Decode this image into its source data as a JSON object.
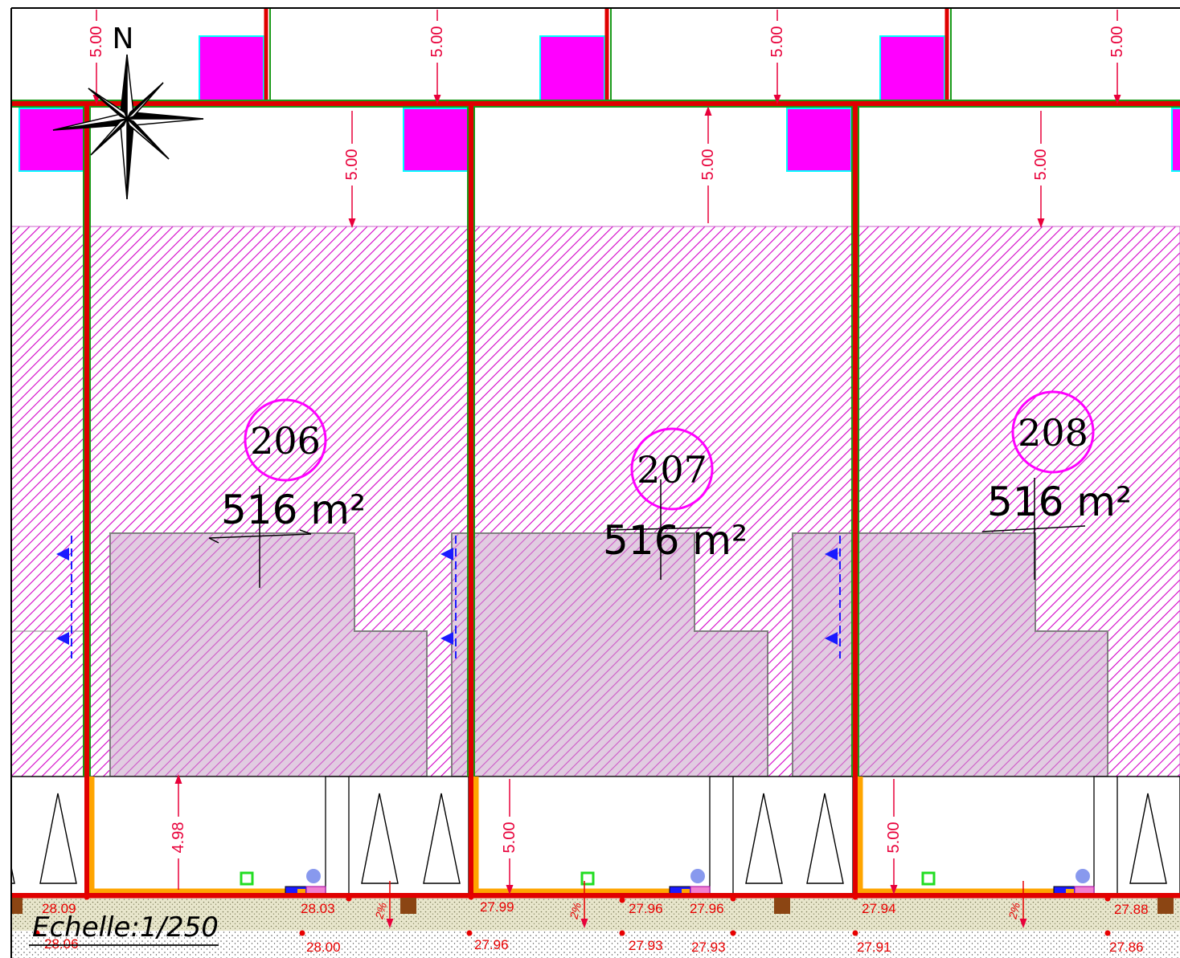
{
  "map": {
    "scale_label": "Echelle:1/250",
    "north_label": "N",
    "lots": [
      {
        "number": "206",
        "area": "516 m²"
      },
      {
        "number": "207",
        "area": "516 m²"
      },
      {
        "number": "208",
        "area": "516 m²"
      }
    ],
    "setback_labels": {
      "top_row": [
        "5.00",
        "5.00",
        "5.00",
        "5.00"
      ],
      "mid_row": [
        "5.00",
        "5.00",
        "5.00"
      ],
      "front_row": [
        "4.98",
        "5.00",
        "5.00"
      ]
    },
    "elevations_upper": [
      "28.09",
      "28.03",
      "27.99",
      "27.96",
      "27.96",
      "27.94",
      "27.88"
    ],
    "elevations_lower": [
      "28.06",
      "28.00",
      "27.96",
      "27.93",
      "27.93",
      "27.91",
      "27.86"
    ],
    "slope_labels": [
      "2%",
      "2%",
      "2%"
    ],
    "colors": {
      "hatch": "#d400c8",
      "boundary_red": "#e00000",
      "boundary_green": "#1a9a1a",
      "marker_magenta": "#ff00ff",
      "dimension": "#e8003a",
      "footprint": "#c8a2c8",
      "access": "#ffa500"
    }
  }
}
